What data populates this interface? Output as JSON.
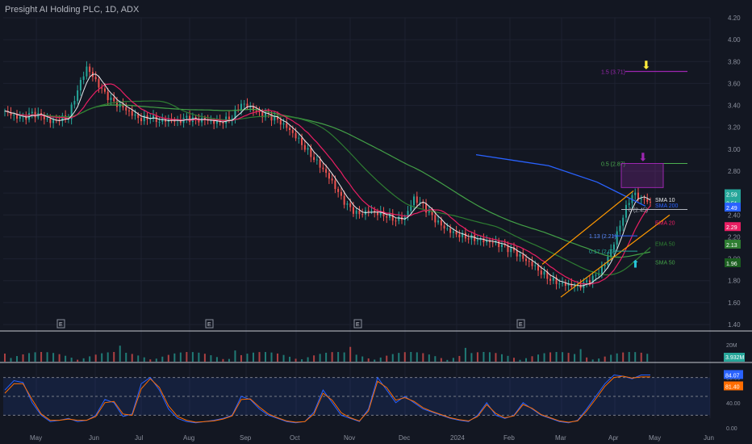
{
  "header": {
    "title": "Presight AI Holding PLC, 1D, ADX"
  },
  "colors": {
    "bg": "#131722",
    "grid": "#1e2230",
    "up": "#26a69a",
    "down": "#ef5350",
    "sma10": "#e8eaed",
    "ema20": "#e91e63",
    "ema50": "#2e7d32",
    "sma100": "#43a047",
    "sma200": "#2962ff",
    "fib": "#9c27b0",
    "channel": "#ff9800",
    "stoch_k": "#2962ff",
    "stoch_d": "#ff6d00"
  },
  "chart_data": [
    {
      "type": "candlestick",
      "title": "",
      "y_ticks": [
        "4.20",
        "4.00",
        "3.80",
        "3.60",
        "3.40",
        "3.20",
        "3.00",
        "2.80",
        "2.60",
        "2.40",
        "2.20",
        "2.00",
        "1.80",
        "1.60",
        "1.40"
      ],
      "ylim": [
        1.4,
        4.2
      ],
      "x_ticks": [
        "May",
        "Jun",
        "Jul",
        "Aug",
        "Sep",
        "Oct",
        "Nov",
        "Dec",
        "2024",
        "Feb",
        "Mar",
        "Apr",
        "May",
        "Jun"
      ],
      "earnings_markers": [
        "E",
        "E",
        "E",
        "E"
      ],
      "close_path": [
        3.35,
        3.3,
        3.28,
        3.32,
        3.3,
        3.25,
        3.28,
        3.3,
        3.55,
        3.75,
        3.62,
        3.5,
        3.42,
        3.38,
        3.32,
        3.28,
        3.3,
        3.26,
        3.27,
        3.25,
        3.28,
        3.26,
        3.27,
        3.25,
        3.26,
        3.3,
        3.42,
        3.38,
        3.32,
        3.3,
        3.26,
        3.2,
        3.12,
        3.02,
        2.92,
        2.82,
        2.7,
        2.55,
        2.45,
        2.4,
        2.44,
        2.42,
        2.4,
        2.36,
        2.38,
        2.55,
        2.48,
        2.38,
        2.3,
        2.25,
        2.22,
        2.2,
        2.18,
        2.16,
        2.14,
        2.1,
        2.06,
        2.0,
        1.95,
        1.88,
        1.82,
        1.78,
        1.76,
        1.74,
        1.78,
        1.84,
        1.95,
        2.15,
        2.4,
        2.6,
        2.55,
        2.52
      ],
      "labels": {
        "fib_1_5": "1.5 (3.71)",
        "fib_0_5": "0.5 (2.87)",
        "fib_0": "0 (2.45)",
        "fib_1_13": "1.13 (2.21)",
        "fib_0_17": "0.17 (2.07)",
        "sma10": "SMA 10",
        "sma200": "SMA 200",
        "ema20": "EMA 20",
        "ema50": "EMA 50",
        "sma100": "SMA 50"
      },
      "price_badges": [
        "2.59",
        "2.51",
        "2.49",
        "2.29",
        "2.13",
        "1.96"
      ]
    },
    {
      "type": "bar",
      "title": "",
      "labels": {
        "max": "20M",
        "last": "3.932M"
      }
    },
    {
      "type": "line",
      "title": "",
      "y_ticks": [
        "80.00",
        "40.00",
        "0.00"
      ],
      "ylim": [
        0,
        100
      ],
      "series": [
        {
          "values": [
            60,
            75,
            72,
            40,
            20,
            10,
            12,
            15,
            10,
            12,
            20,
            45,
            40,
            18,
            22,
            70,
            80,
            60,
            30,
            15,
            10,
            8,
            10,
            12,
            15,
            20,
            50,
            45,
            30,
            20,
            15,
            10,
            8,
            10,
            25,
            60,
            40,
            20,
            15,
            10,
            30,
            80,
            60,
            40,
            50,
            40,
            30,
            25,
            20,
            15,
            12,
            10,
            20,
            40,
            20,
            15,
            20,
            40,
            30,
            20,
            15,
            10,
            8,
            12,
            30,
            50,
            70,
            84,
            82,
            78,
            84,
            84
          ]
        },
        {
          "values": [
            55,
            70,
            70,
            45,
            22,
            12,
            12,
            14,
            12,
            12,
            18,
            40,
            42,
            22,
            20,
            62,
            78,
            64,
            35,
            18,
            12,
            9,
            10,
            11,
            14,
            19,
            45,
            46,
            33,
            22,
            16,
            11,
            9,
            10,
            22,
            55,
            44,
            24,
            16,
            11,
            27,
            74,
            64,
            44,
            48,
            42,
            32,
            26,
            21,
            16,
            13,
            11,
            18,
            37,
            23,
            16,
            19,
            37,
            31,
            21,
            16,
            11,
            9,
            11,
            27,
            46,
            66,
            80,
            82,
            79,
            81,
            81
          ]
        }
      ],
      "labels": {
        "k": "84.07",
        "d": "81.40"
      }
    }
  ]
}
